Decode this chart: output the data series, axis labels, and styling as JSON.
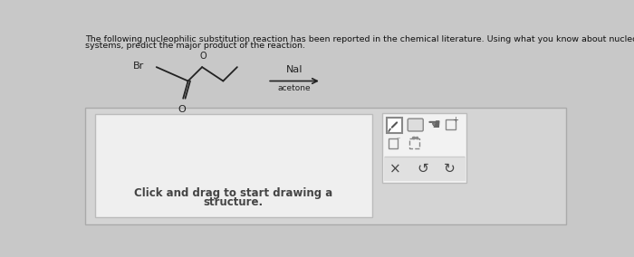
{
  "title_line1": "The following nucleophilic substitution reaction has been reported in the chemical literature. Using what you know about nucleophilic substitution in simple",
  "title_line2": "systems, predict the major product of the reaction.",
  "reagent_line1": "NaI",
  "reagent_line2": "acetone",
  "click_drag_text1": "Click and drag to start drawing a",
  "click_drag_text2": "structure.",
  "bg_color": "#c8c8c8",
  "outer_panel_color": "#d0d0d0",
  "inner_panel_color": "#e8e8e8",
  "toolbar_color": "#f2f2f2",
  "toolbar_border": "#bbbbbb",
  "text_color": "#111111",
  "title_fontsize": 6.8,
  "reagent_fontsize": 8.0,
  "acetone_fontsize": 6.5,
  "click_fontsize": 8.5
}
